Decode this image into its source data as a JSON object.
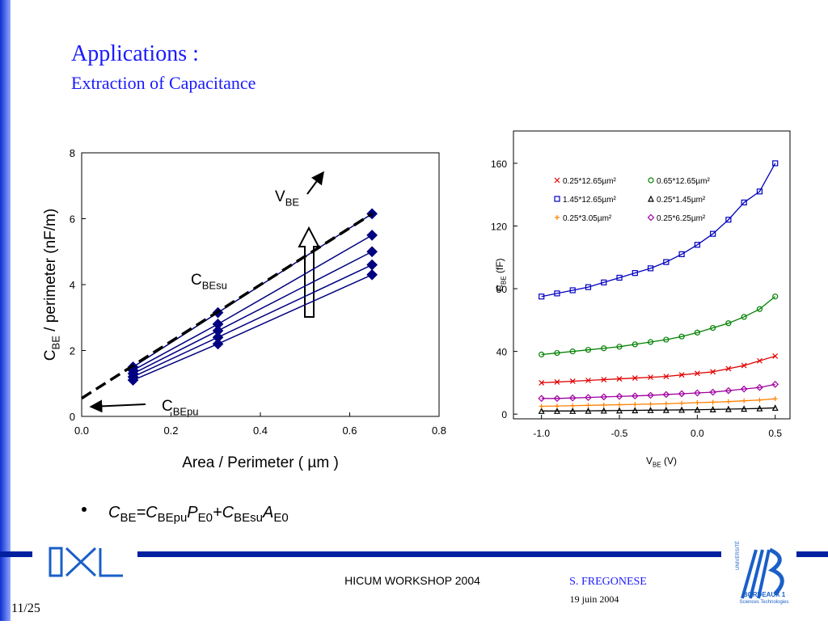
{
  "slide": {
    "title": "Applications :",
    "subtitle": "Extraction of Capacitance",
    "equation": [
      {
        "text": "C",
        "sub": "BE"
      },
      {
        "text": "=C",
        "sub": "BEpu"
      },
      {
        "text": "P",
        "sub": "E0"
      },
      {
        "text": "+C",
        "sub": "BEsu"
      },
      {
        "text": "A",
        "sub": "E0"
      }
    ],
    "footer": {
      "event": "HICUM WORKSHOP 2004",
      "author": "S. FREGONESE",
      "date": "19 juin 2004",
      "page": "11/25"
    },
    "logo": {
      "university": "UNIVERSITÉ",
      "name": "BORDEAUX 1",
      "faculty": "Sciences Technologies"
    }
  },
  "chart_data": [
    {
      "type": "line",
      "x": [
        0.115,
        0.305,
        0.65
      ],
      "series": [
        {
          "color": "#000080",
          "marker": "diamond",
          "values": [
            1.1,
            2.2,
            4.3
          ]
        },
        {
          "color": "#000080",
          "marker": "diamond",
          "values": [
            1.2,
            2.4,
            4.6
          ]
        },
        {
          "color": "#000080",
          "marker": "diamond",
          "values": [
            1.3,
            2.6,
            5.0
          ]
        },
        {
          "color": "#000080",
          "marker": "diamond",
          "values": [
            1.4,
            2.8,
            5.5
          ]
        },
        {
          "color": "#000080",
          "marker": "diamond",
          "values": [
            1.5,
            3.15,
            6.15
          ]
        }
      ],
      "fit": {
        "x": [
          0,
          0.65
        ],
        "values": [
          0.55,
          6.15
        ],
        "color": "#000000",
        "dash": true
      },
      "xlabel": "Area / Perimeter ( µm )",
      "ylabel": {
        "text": "C",
        "sub": "BE",
        "rest": " / perimeter (nF/m)"
      },
      "annotations": [
        {
          "text": "V",
          "sub": "BE"
        },
        {
          "text": "C",
          "sub": "BEsu"
        },
        {
          "text": "C",
          "sub": "BEpu"
        }
      ],
      "xlim": [
        0,
        0.8
      ],
      "xticks": [
        {
          "value": 0,
          "label": "0.0"
        },
        {
          "value": 0.2,
          "label": "0.2"
        },
        {
          "value": 0.4,
          "label": "0.4"
        },
        {
          "value": 0.6,
          "label": "0.6"
        },
        {
          "value": 0.8,
          "label": "0.8"
        }
      ],
      "ylim": [
        0,
        8
      ],
      "yticks": [
        0,
        2,
        4,
        6,
        8
      ]
    },
    {
      "type": "line",
      "x": [
        -1.0,
        -0.9,
        -0.8,
        -0.7,
        -0.6,
        -0.5,
        -0.4,
        -0.3,
        -0.2,
        -0.1,
        0.0,
        0.1,
        0.2,
        0.3,
        0.4,
        0.5
      ],
      "series": [
        {
          "name": "0.25*12.65µm²",
          "color": "#e00000",
          "marker": "x",
          "values": [
            20,
            20.5,
            21,
            21.5,
            22,
            22.5,
            23,
            23.5,
            24,
            25,
            26,
            27,
            29,
            31,
            34,
            37
          ]
        },
        {
          "name": "0.65*12.65µm²",
          "color": "#008000",
          "marker": "circle",
          "values": [
            38,
            39,
            40,
            41,
            42,
            43,
            44.5,
            46,
            47.5,
            49.5,
            52,
            55,
            58,
            62,
            67,
            75
          ]
        },
        {
          "name": "1.45*12.65µm²",
          "color": "#0000c0",
          "marker": "square",
          "values": [
            75,
            77,
            79,
            81,
            84,
            87,
            90,
            93,
            97,
            102,
            108,
            115,
            124,
            135,
            142,
            160
          ]
        },
        {
          "name": "0.25*1.45µm²",
          "color": "#000000",
          "marker": "triangle",
          "values": [
            2,
            2,
            2,
            2.1,
            2.2,
            2.3,
            2.4,
            2.5,
            2.6,
            2.7,
            2.8,
            3,
            3.2,
            3.4,
            3.6,
            4
          ]
        },
        {
          "name": "0.25*3.05µm²",
          "color": "#ff8000",
          "marker": "plus",
          "values": [
            5,
            5.2,
            5.4,
            5.6,
            5.8,
            6,
            6.2,
            6.4,
            6.6,
            7,
            7.3,
            7.6,
            8,
            8.5,
            9,
            9.8
          ]
        },
        {
          "name": "0.25*6.25µm²",
          "color": "#a000a0",
          "marker": "diamond-open",
          "values": [
            10,
            10,
            10.3,
            10.6,
            11,
            11.3,
            11.6,
            12,
            12.5,
            13,
            13.5,
            14,
            15,
            16,
            17,
            19
          ]
        }
      ],
      "xlabel": {
        "text": "V",
        "sub": "BE",
        "rest": " (V)"
      },
      "ylabel": {
        "text": "C",
        "sub": "BE",
        "rest": " (fF)"
      },
      "xlim": [
        -1.18,
        0.595
      ],
      "xticks": [
        {
          "value": -1,
          "label": "-1.0"
        },
        {
          "value": -0.5,
          "label": "-0.5"
        },
        {
          "value": 0,
          "label": "0.0"
        },
        {
          "value": 0.5,
          "label": "0.5"
        }
      ],
      "ylim": [
        -3,
        180.6
      ],
      "yticks": [
        0,
        40,
        80,
        120,
        160
      ]
    }
  ]
}
